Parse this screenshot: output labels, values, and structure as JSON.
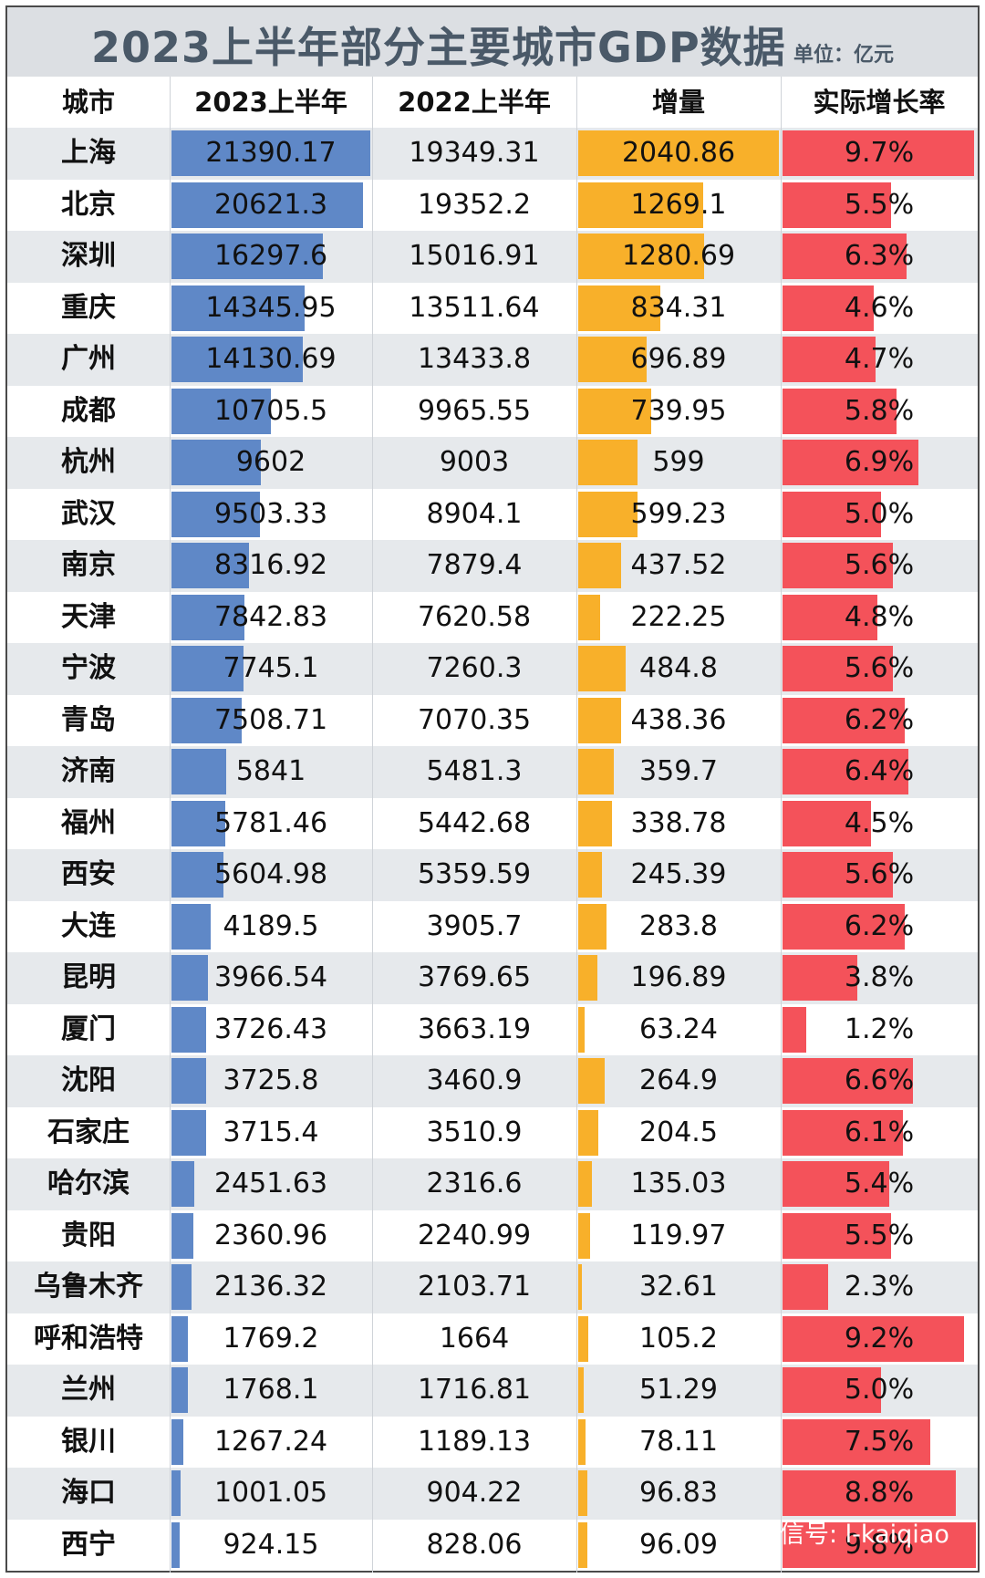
{
  "title": "2023上半年部分主要城市GDP数据",
  "unit": "单位：亿元",
  "headers": {
    "city": "城市",
    "gdp2023": "2023上半年",
    "gdp2022": "2022上半年",
    "increase": "增量",
    "growth": "实际增长率"
  },
  "colors": {
    "gdp_bar": "#5f88c7",
    "increase_bar": "#f8b02a",
    "growth_bar": "#f4525a",
    "row_stripe": "#e6e9ec",
    "title_bg": "#dcdfe3"
  },
  "watermark": "微信号: l-kaiqiao",
  "chart_data": {
    "type": "table",
    "title": "2023上半年部分主要城市GDP数据",
    "columns": [
      "城市",
      "2023上半年",
      "2022上半年",
      "增量",
      "实际增长率"
    ],
    "max_gdp2023": 21390.17,
    "max_increase": 2040.86,
    "max_growth": 9.8,
    "rows": [
      {
        "city": "上海",
        "gdp2023": "21390.17",
        "gdp2022": "19349.31",
        "increase": "2040.86",
        "growth": "9.7%",
        "v2023": 21390.17,
        "vinc": 2040.86,
        "vg": 9.7
      },
      {
        "city": "北京",
        "gdp2023": "20621.3",
        "gdp2022": "19352.2",
        "increase": "1269.1",
        "growth": "5.5%",
        "v2023": 20621.3,
        "vinc": 1269.1,
        "vg": 5.5
      },
      {
        "city": "深圳",
        "gdp2023": "16297.6",
        "gdp2022": "15016.91",
        "increase": "1280.69",
        "growth": "6.3%",
        "v2023": 16297.6,
        "vinc": 1280.69,
        "vg": 6.3
      },
      {
        "city": "重庆",
        "gdp2023": "14345.95",
        "gdp2022": "13511.64",
        "increase": "834.31",
        "growth": "4.6%",
        "v2023": 14345.95,
        "vinc": 834.31,
        "vg": 4.6
      },
      {
        "city": "广州",
        "gdp2023": "14130.69",
        "gdp2022": "13433.8",
        "increase": "696.89",
        "growth": "4.7%",
        "v2023": 14130.69,
        "vinc": 696.89,
        "vg": 4.7
      },
      {
        "city": "成都",
        "gdp2023": "10705.5",
        "gdp2022": "9965.55",
        "increase": "739.95",
        "growth": "5.8%",
        "v2023": 10705.5,
        "vinc": 739.95,
        "vg": 5.8
      },
      {
        "city": "杭州",
        "gdp2023": "9602",
        "gdp2022": "9003",
        "increase": "599",
        "growth": "6.9%",
        "v2023": 9602,
        "vinc": 599,
        "vg": 6.9
      },
      {
        "city": "武汉",
        "gdp2023": "9503.33",
        "gdp2022": "8904.1",
        "increase": "599.23",
        "growth": "5.0%",
        "v2023": 9503.33,
        "vinc": 599.23,
        "vg": 5.0
      },
      {
        "city": "南京",
        "gdp2023": "8316.92",
        "gdp2022": "7879.4",
        "increase": "437.52",
        "growth": "5.6%",
        "v2023": 8316.92,
        "vinc": 437.52,
        "vg": 5.6
      },
      {
        "city": "天津",
        "gdp2023": "7842.83",
        "gdp2022": "7620.58",
        "increase": "222.25",
        "growth": "4.8%",
        "v2023": 7842.83,
        "vinc": 222.25,
        "vg": 4.8
      },
      {
        "city": "宁波",
        "gdp2023": "7745.1",
        "gdp2022": "7260.3",
        "increase": "484.8",
        "growth": "5.6%",
        "v2023": 7745.1,
        "vinc": 484.8,
        "vg": 5.6
      },
      {
        "city": "青岛",
        "gdp2023": "7508.71",
        "gdp2022": "7070.35",
        "increase": "438.36",
        "growth": "6.2%",
        "v2023": 7508.71,
        "vinc": 438.36,
        "vg": 6.2
      },
      {
        "city": "济南",
        "gdp2023": "5841",
        "gdp2022": "5481.3",
        "increase": "359.7",
        "growth": "6.4%",
        "v2023": 5841,
        "vinc": 359.7,
        "vg": 6.4
      },
      {
        "city": "福州",
        "gdp2023": "5781.46",
        "gdp2022": "5442.68",
        "increase": "338.78",
        "growth": "4.5%",
        "v2023": 5781.46,
        "vinc": 338.78,
        "vg": 4.5
      },
      {
        "city": "西安",
        "gdp2023": "5604.98",
        "gdp2022": "5359.59",
        "increase": "245.39",
        "growth": "5.6%",
        "v2023": 5604.98,
        "vinc": 245.39,
        "vg": 5.6
      },
      {
        "city": "大连",
        "gdp2023": "4189.5",
        "gdp2022": "3905.7",
        "increase": "283.8",
        "growth": "6.2%",
        "v2023": 4189.5,
        "vinc": 283.8,
        "vg": 6.2
      },
      {
        "city": "昆明",
        "gdp2023": "3966.54",
        "gdp2022": "3769.65",
        "increase": "196.89",
        "growth": "3.8%",
        "v2023": 3966.54,
        "vinc": 196.89,
        "vg": 3.8
      },
      {
        "city": "厦门",
        "gdp2023": "3726.43",
        "gdp2022": "3663.19",
        "increase": "63.24",
        "growth": "1.2%",
        "v2023": 3726.43,
        "vinc": 63.24,
        "vg": 1.2
      },
      {
        "city": "沈阳",
        "gdp2023": "3725.8",
        "gdp2022": "3460.9",
        "increase": "264.9",
        "growth": "6.6%",
        "v2023": 3725.8,
        "vinc": 264.9,
        "vg": 6.6
      },
      {
        "city": "石家庄",
        "gdp2023": "3715.4",
        "gdp2022": "3510.9",
        "increase": "204.5",
        "growth": "6.1%",
        "v2023": 3715.4,
        "vinc": 204.5,
        "vg": 6.1
      },
      {
        "city": "哈尔滨",
        "gdp2023": "2451.63",
        "gdp2022": "2316.6",
        "increase": "135.03",
        "growth": "5.4%",
        "v2023": 2451.63,
        "vinc": 135.03,
        "vg": 5.4
      },
      {
        "city": "贵阳",
        "gdp2023": "2360.96",
        "gdp2022": "2240.99",
        "increase": "119.97",
        "growth": "5.5%",
        "v2023": 2360.96,
        "vinc": 119.97,
        "vg": 5.5
      },
      {
        "city": "乌鲁木齐",
        "gdp2023": "2136.32",
        "gdp2022": "2103.71",
        "increase": "32.61",
        "growth": "2.3%",
        "v2023": 2136.32,
        "vinc": 32.61,
        "vg": 2.3
      },
      {
        "city": "呼和浩特",
        "gdp2023": "1769.2",
        "gdp2022": "1664",
        "increase": "105.2",
        "growth": "9.2%",
        "v2023": 1769.2,
        "vinc": 105.2,
        "vg": 9.2
      },
      {
        "city": "兰州",
        "gdp2023": "1768.1",
        "gdp2022": "1716.81",
        "increase": "51.29",
        "growth": "5.0%",
        "v2023": 1768.1,
        "vinc": 51.29,
        "vg": 5.0
      },
      {
        "city": "银川",
        "gdp2023": "1267.24",
        "gdp2022": "1189.13",
        "increase": "78.11",
        "growth": "7.5%",
        "v2023": 1267.24,
        "vinc": 78.11,
        "vg": 7.5
      },
      {
        "city": "海口",
        "gdp2023": "1001.05",
        "gdp2022": "904.22",
        "increase": "96.83",
        "growth": "8.8%",
        "v2023": 1001.05,
        "vinc": 96.83,
        "vg": 8.8
      },
      {
        "city": "西宁",
        "gdp2023": "924.15",
        "gdp2022": "828.06",
        "increase": "96.09",
        "growth": "9.8%",
        "v2023": 924.15,
        "vinc": 96.09,
        "vg": 9.8
      }
    ]
  }
}
